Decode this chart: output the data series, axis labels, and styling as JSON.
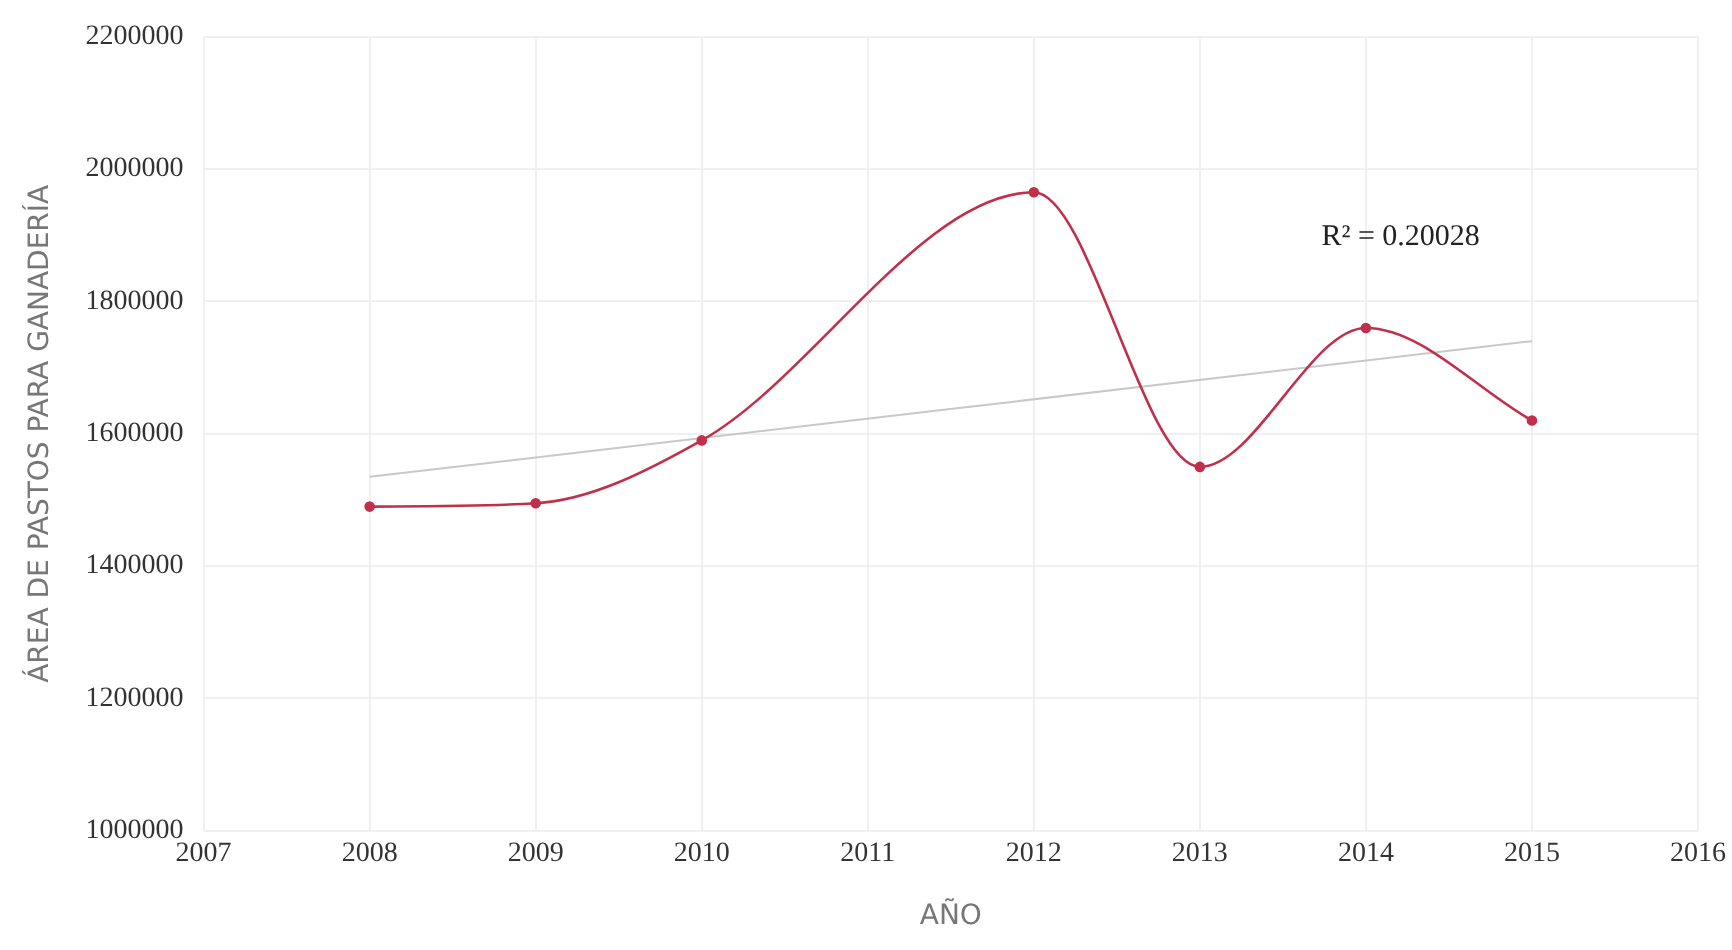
{
  "chart_data": {
    "type": "line",
    "xlabel": "AÑO",
    "ylabel": "ÁREA DE PASTOS PARA GANADERÍA",
    "x": [
      2008,
      2009,
      2010,
      2012,
      2013,
      2014,
      2015
    ],
    "series": [
      {
        "color": "#c0304a",
        "values": [
          1490000,
          1495000,
          1590000,
          1965000,
          1550000,
          1760000,
          1620000
        ],
        "marker": "circle"
      },
      {
        "type": "line",
        "color": "#c8c8c8",
        "x": [
          2008,
          2015
        ],
        "values": [
          1535000,
          1740000
        ],
        "marker": "none"
      }
    ],
    "xlim": [
      2007,
      2016
    ],
    "xticks": [
      2007,
      2008,
      2009,
      2010,
      2011,
      2012,
      2013,
      2014,
      2015,
      2016
    ],
    "ylim": [
      1000000,
      2200000
    ],
    "yticks": [
      1000000,
      1200000,
      1400000,
      1600000,
      1800000,
      2000000,
      2200000
    ],
    "grid": true,
    "legend": false,
    "annotations": [
      "R² = 0.20028"
    ]
  }
}
